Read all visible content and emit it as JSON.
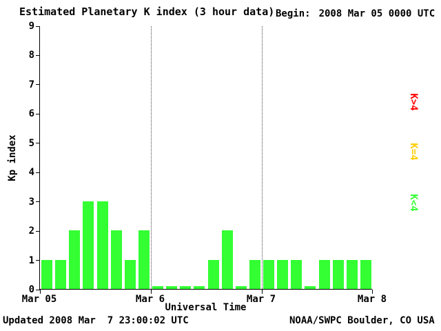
{
  "header": {
    "title": "Estimated Planetary K index (3 hour data)",
    "begin_label": "Begin:",
    "begin_value": "2008 Mar 05 0000 UTC"
  },
  "footer": {
    "updated": "Updated 2008 Mar  7 23:00:02 UTC",
    "source": "NOAA/SWPC Boulder, CO USA"
  },
  "legend": [
    {
      "label": "K>4",
      "color": "#ff0000"
    },
    {
      "label": "K=4",
      "color": "#ffcc00"
    },
    {
      "label": "K<4",
      "color": "#33ff33"
    }
  ],
  "chart_data": {
    "type": "bar",
    "title": "Estimated Planetary K index (3 hour data)",
    "xlabel": "Universal Time",
    "ylabel": "Kp index",
    "ylim": [
      0,
      9
    ],
    "y_ticks": [
      0,
      1,
      2,
      3,
      4,
      5,
      6,
      7,
      8,
      9
    ],
    "x_ticks": [
      "Mar 05",
      "Mar 6",
      "Mar 7",
      "Mar 8"
    ],
    "bars_per_day": 8,
    "days": [
      "Mar 05",
      "Mar 6",
      "Mar 7"
    ],
    "values": [
      1,
      1,
      2,
      3,
      3,
      2,
      1,
      2,
      0,
      0,
      0,
      0,
      1,
      2,
      0,
      1,
      1,
      1,
      1,
      0,
      1,
      1,
      1,
      1
    ],
    "legend_labels": [
      "K>4",
      "K=4",
      "K<4"
    ],
    "colors": {
      "k_lt_4": "#33ff33",
      "k_eq_4": "#ffcc00",
      "k_gt_4": "#ff0000"
    },
    "grid": "vertical dotted lines at day boundaries",
    "legend_position": "right, rotated 90deg"
  }
}
